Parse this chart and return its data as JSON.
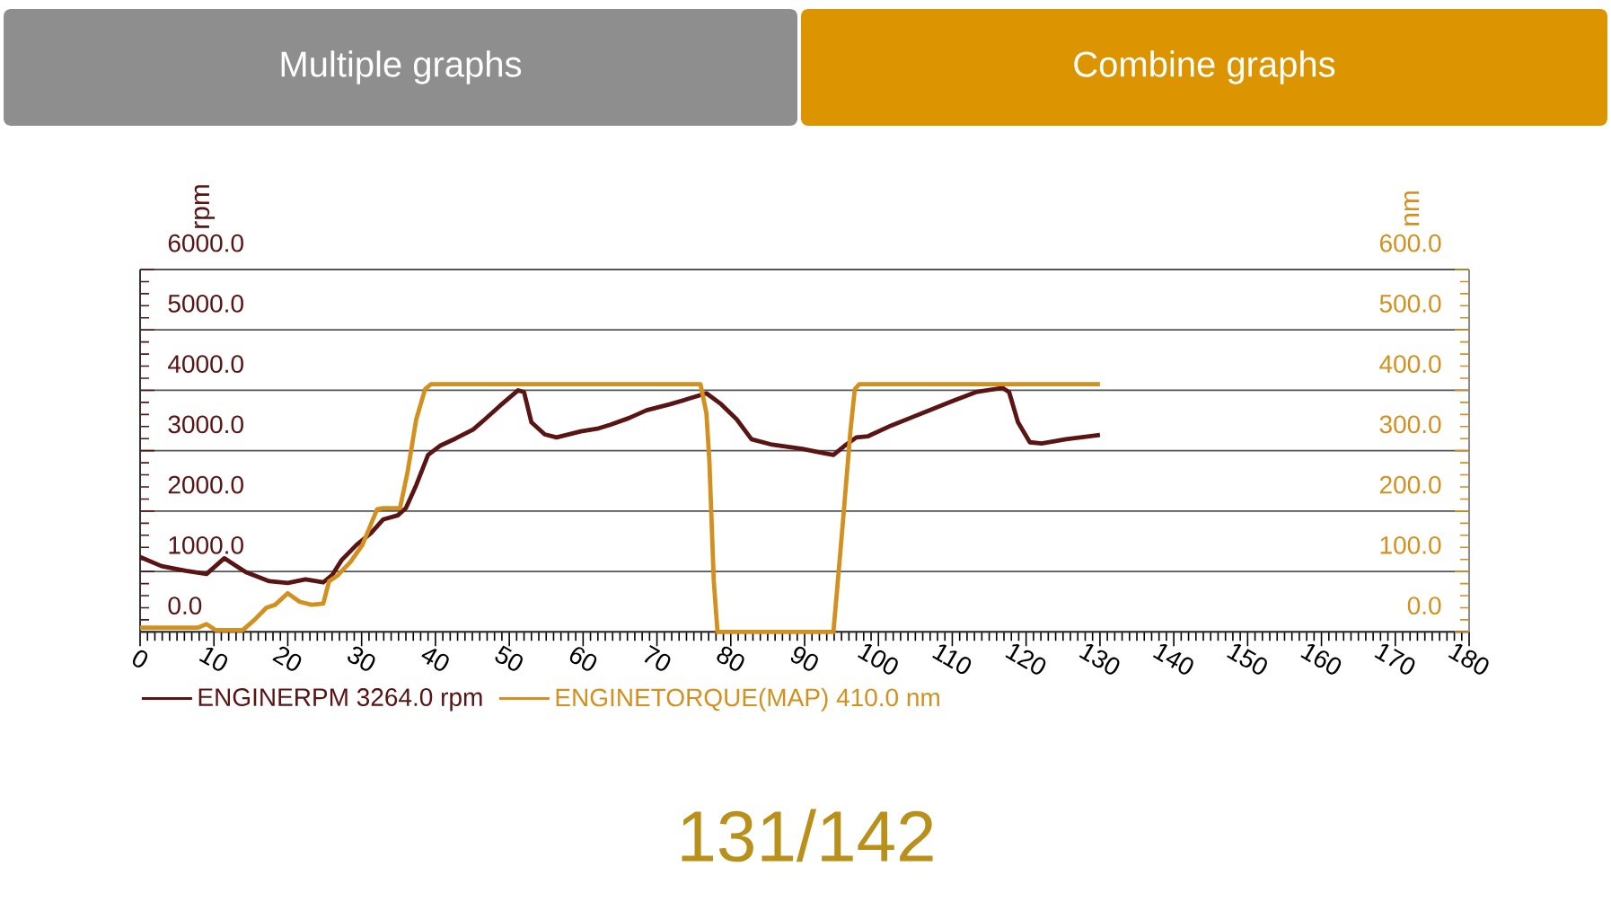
{
  "chart_data": {
    "type": "line",
    "ylabel": "rpm",
    "y2label": "nm",
    "xlim": [
      0,
      180
    ],
    "xticks": [
      0,
      10,
      20,
      30,
      40,
      50,
      60,
      70,
      80,
      90,
      100,
      110,
      120,
      130,
      140,
      150,
      160,
      170,
      180
    ],
    "ylim": [
      0,
      6000
    ],
    "yticks": [
      {
        "value": 0,
        "label": "0.0"
      },
      {
        "value": 1000,
        "label": "1000.0"
      },
      {
        "value": 2000,
        "label": "2000.0"
      },
      {
        "value": 3000,
        "label": "3000.0"
      },
      {
        "value": 4000,
        "label": "4000.0"
      },
      {
        "value": 5000,
        "label": "5000.0"
      },
      {
        "value": 6000,
        "label": "6000.0"
      }
    ],
    "y2lim": [
      0,
      600
    ],
    "y2ticks": [
      {
        "value": 0,
        "label": "0.0"
      },
      {
        "value": 100,
        "label": "100.0"
      },
      {
        "value": 200,
        "label": "200.0"
      },
      {
        "value": 300,
        "label": "300.0"
      },
      {
        "value": 400,
        "label": "400.0"
      },
      {
        "value": 500,
        "label": "500.0"
      },
      {
        "value": 600,
        "label": "600.0"
      }
    ],
    "grid": "y",
    "legend": "bottom left",
    "annotations": [
      "Multiple graphs",
      "Combine graphs",
      "131/142"
    ],
    "series": [
      {
        "name": "ENGINERPM 3264.0 rpm",
        "color": "#5a1414",
        "x": [
          0,
          2.9,
          6.2,
          9,
          11.4,
          14.3,
          17.5,
          20,
          22.4,
          24.8,
          26,
          27.3,
          29.3,
          31.3,
          32.9,
          34.9,
          36,
          37.4,
          39,
          40.6,
          42.7,
          45.1,
          46.7,
          48.7,
          51.2,
          52,
          53,
          54.8,
          56.4,
          59.7,
          62.1,
          63.7,
          66.2,
          68.6,
          71.8,
          75.9,
          76.7,
          78.7,
          80.8,
          82.8,
          85.6,
          89.7,
          92.1,
          93.9,
          95.4,
          97,
          98.6,
          101.8,
          105.9,
          110,
          113.2,
          116.8,
          117.7,
          118.9,
          120.5,
          122.1,
          125.4,
          130
        ],
        "values": [
          1240,
          1090,
          1010,
          960,
          1220,
          990,
          840,
          810,
          870,
          820,
          940,
          1190,
          1440,
          1640,
          1860,
          1930,
          2050,
          2430,
          2930,
          3080,
          3200,
          3350,
          3520,
          3740,
          4000,
          3970,
          3470,
          3270,
          3220,
          3320,
          3370,
          3430,
          3540,
          3670,
          3770,
          3920,
          3950,
          3770,
          3520,
          3190,
          3100,
          3030,
          2970,
          2930,
          3080,
          3220,
          3240,
          3420,
          3620,
          3820,
          3970,
          4040,
          3970,
          3470,
          3140,
          3120,
          3190,
          3260
        ]
      },
      {
        "name": "ENGINETORQUE(MAP) 410.0 nm",
        "color": "#d4901e",
        "axis": "y2",
        "x": [
          0,
          7.8,
          9,
          10.2,
          13.9,
          15.5,
          17.1,
          18.3,
          20,
          21.6,
          23.2,
          24.8,
          25.6,
          26.8,
          28.5,
          30.1,
          32.1,
          32.9,
          35.2,
          36.2,
          37.4,
          38.6,
          39.4,
          75.9,
          76.7,
          77.1,
          77.7,
          78.2,
          93.9,
          94.5,
          95.2,
          96.2,
          96.8,
          97.4,
          130
        ],
        "values": [
          7,
          7,
          13,
          3,
          3,
          20,
          40,
          45,
          64,
          50,
          45,
          47,
          84,
          94,
          116,
          144,
          203,
          205,
          205,
          263,
          352,
          402,
          410,
          410,
          362,
          283,
          84,
          0,
          0,
          84,
          184,
          332,
          402,
          410,
          410
        ]
      }
    ]
  }
}
